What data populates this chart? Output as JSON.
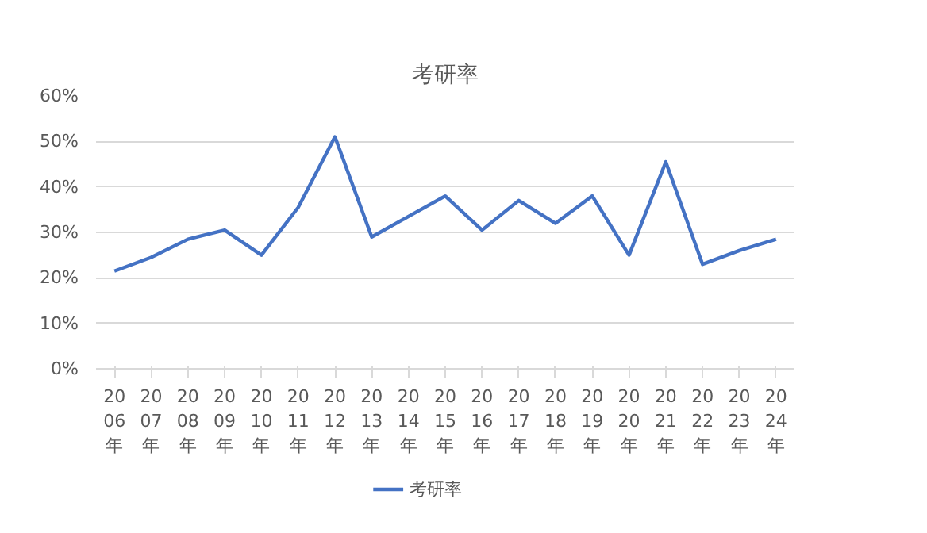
{
  "chart_data": {
    "type": "line",
    "title": "考研率",
    "categories": [
      "2006年",
      "2007年",
      "2008年",
      "2009年",
      "2010年",
      "2011年",
      "2012年",
      "2013年",
      "2014年",
      "2015年",
      "2016年",
      "2017年",
      "2018年",
      "2019年",
      "2020年",
      "2021年",
      "2022年",
      "2023年",
      "2024年"
    ],
    "series": [
      {
        "name": "考研率",
        "color": "#4472c4",
        "values": [
          21.5,
          24.5,
          28.5,
          30.5,
          25,
          35.5,
          51,
          29,
          33.5,
          38,
          30.5,
          37,
          32,
          38,
          25,
          45.5,
          23,
          26,
          28.5
        ]
      }
    ],
    "ylim": [
      0,
      60
    ],
    "yticks": [
      {
        "value": 0,
        "label": "0%"
      },
      {
        "value": 10,
        "label": "10%"
      },
      {
        "value": 20,
        "label": "20%"
      },
      {
        "value": 30,
        "label": "30%"
      },
      {
        "value": 40,
        "label": "40%"
      },
      {
        "value": 50,
        "label": "50%"
      },
      {
        "value": 60,
        "label": "60%"
      }
    ],
    "grid": "y",
    "legend": "bottom",
    "marker": "none",
    "line_style": "solid"
  }
}
